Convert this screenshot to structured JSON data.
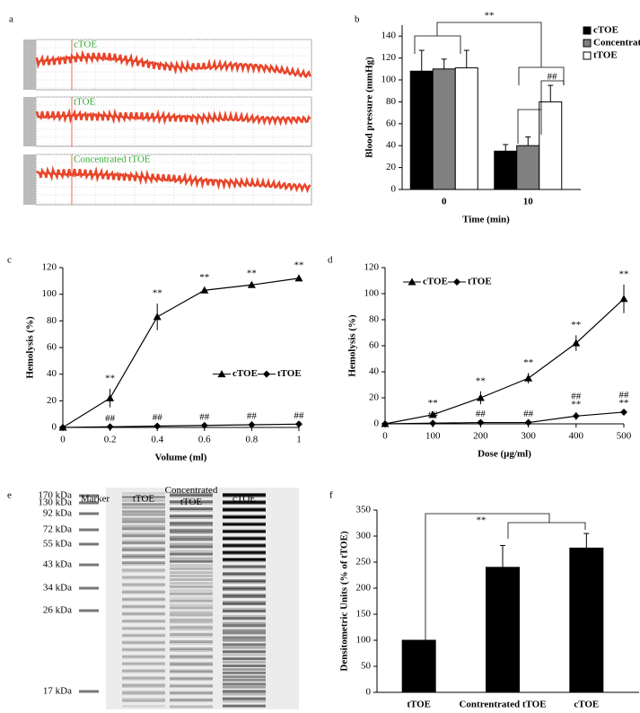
{
  "panel_letters": [
    "a",
    "b",
    "c",
    "d",
    "e",
    "f"
  ],
  "panel_a": {
    "trace_labels": [
      "cTOE",
      "tTOE",
      "Concentrated tTOE"
    ]
  },
  "panel_e": {
    "lanes": [
      "Marker",
      "tTOE",
      "Concentrated tTOE",
      "cTOE"
    ],
    "markers": [
      "170 kDa",
      "130 kDa",
      "92 kDa",
      "72 kDa",
      "55 kDa",
      "43 kDa",
      "34 kDa",
      "26 kDa",
      "17 kDa"
    ]
  },
  "chart_data": [
    {
      "type": "bar",
      "xlabel": "Time (min)",
      "ylabel": "Blood pressure (mmHg)",
      "categories": [
        "0",
        "10"
      ],
      "ylim": [
        0,
        150
      ],
      "yticks": [
        0,
        20,
        40,
        60,
        80,
        100,
        120,
        140
      ],
      "legend": "upper right",
      "series": [
        {
          "name": "cTOE",
          "color": "#000000",
          "values": [
            108,
            35
          ],
          "errors": [
            19,
            6
          ]
        },
        {
          "name": "Concentrated tTOE",
          "color": "#808080",
          "values": [
            110,
            40
          ],
          "errors": [
            9,
            8
          ]
        },
        {
          "name": "tTOE",
          "color": "#ffffff",
          "values": [
            111,
            80
          ],
          "errors": [
            16,
            15
          ]
        }
      ],
      "annotations": [
        "**",
        "##"
      ]
    },
    {
      "type": "line",
      "xlabel": "Volume (ml)",
      "ylabel": "Hemolysis (%)",
      "x": [
        0,
        0.2,
        0.4,
        0.6,
        0.8,
        1
      ],
      "xlim": [
        0,
        1
      ],
      "xticks": [
        0,
        0.2,
        0.4,
        0.6,
        0.8,
        1
      ],
      "ylim": [
        0,
        120
      ],
      "yticks": [
        0,
        20,
        40,
        60,
        80,
        100,
        120
      ],
      "legend": "center right",
      "series": [
        {
          "name": "cTOE",
          "color": "#000000",
          "marker": "triangle",
          "values": [
            0,
            22,
            83,
            103,
            107,
            112
          ],
          "errors": [
            0,
            7,
            10,
            2,
            1,
            2
          ],
          "annotations": [
            null,
            "**",
            "**",
            "**",
            "**",
            "**"
          ]
        },
        {
          "name": "tTOE",
          "color": "#000000",
          "marker": "diamond",
          "values": [
            0,
            0.5,
            1,
            1.5,
            2,
            2.5
          ],
          "errors": [
            0,
            0,
            0,
            0,
            0,
            0
          ],
          "annotations": [
            null,
            "##",
            "##",
            "##",
            "##",
            "##"
          ]
        }
      ]
    },
    {
      "type": "line",
      "xlabel": "Dose (µg/ml)",
      "ylabel": "Hemolysis (%)",
      "x": [
        0,
        100,
        200,
        300,
        400,
        500
      ],
      "xlim": [
        0,
        500
      ],
      "xticks": [
        0,
        100,
        200,
        300,
        400,
        500
      ],
      "ylim": [
        0,
        120
      ],
      "yticks": [
        0,
        20,
        40,
        60,
        80,
        100,
        120
      ],
      "legend": "upper left",
      "series": [
        {
          "name": "cTOE",
          "color": "#000000",
          "marker": "triangle",
          "values": [
            0,
            7,
            20,
            35,
            62,
            96
          ],
          "errors": [
            0,
            1,
            5,
            4,
            6,
            11
          ],
          "annotations": [
            null,
            "**",
            "**",
            "**",
            "**",
            "**"
          ]
        },
        {
          "name": "tTOE",
          "color": "#000000",
          "marker": "diamond",
          "values": [
            0,
            0.5,
            1,
            1,
            6,
            9
          ],
          "errors": [
            0,
            0,
            0,
            0,
            3,
            1
          ],
          "annotations": [
            null,
            "##",
            "##",
            "##",
            "##",
            "##"
          ],
          "annotations_lower": [
            null,
            null,
            null,
            null,
            "**",
            "**"
          ]
        }
      ]
    },
    {
      "type": "bar",
      "ylabel": "Densitometric Units (% of tTOE)",
      "categories": [
        "tTOE",
        "Contrentrated tTOE",
        "cTOE"
      ],
      "ylim": [
        0,
        350
      ],
      "yticks": [
        0,
        50,
        100,
        150,
        200,
        250,
        300,
        350
      ],
      "series": [
        {
          "color": "#000000",
          "values": [
            100,
            240,
            277
          ],
          "errors": [
            0,
            42,
            28
          ]
        }
      ],
      "annotations": [
        "**"
      ]
    }
  ]
}
